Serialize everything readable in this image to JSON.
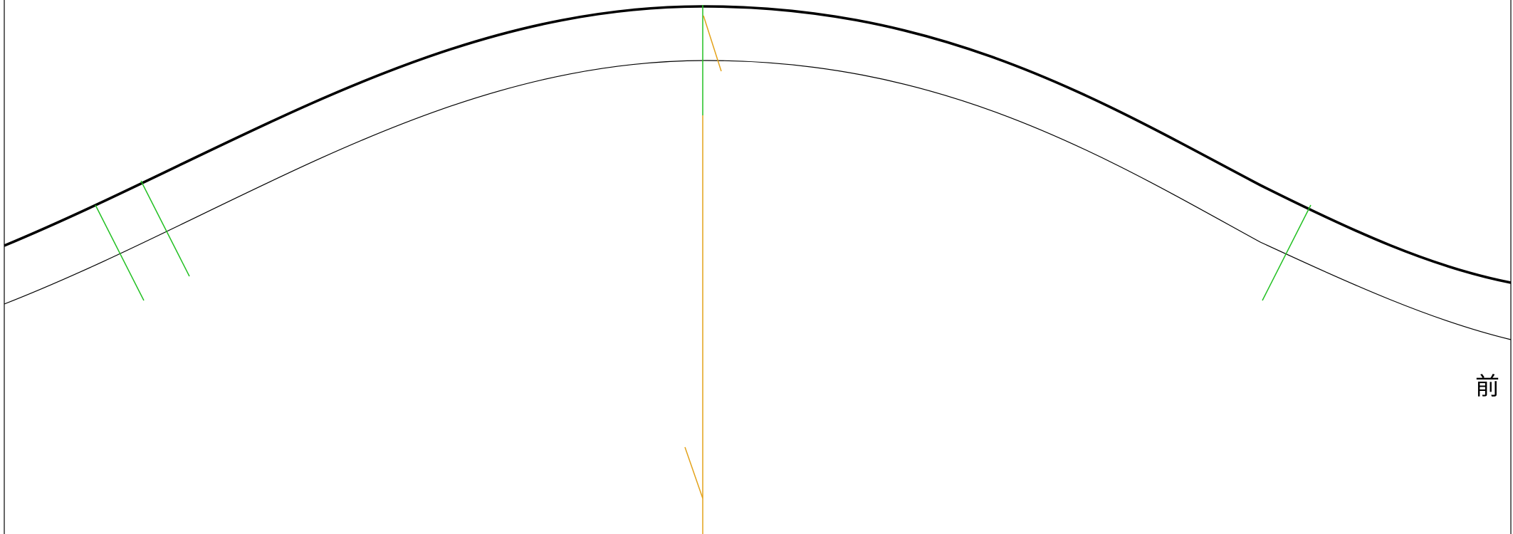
{
  "diagram": {
    "label_front": "前",
    "colors": {
      "background": "#ffffff",
      "outline": "#000000",
      "notch": "#00c000",
      "grainline": "#e0a000"
    }
  }
}
